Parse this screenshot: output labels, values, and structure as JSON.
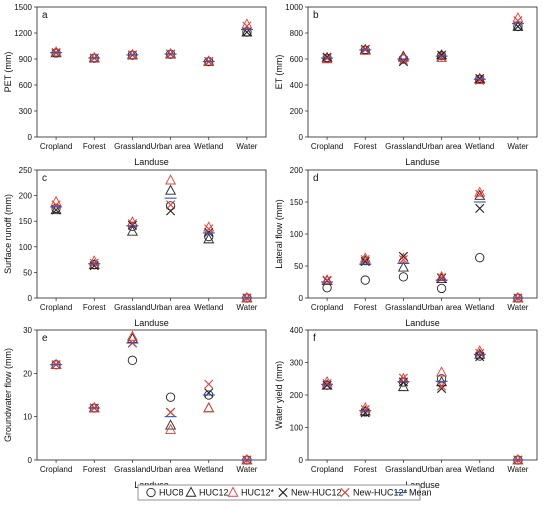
{
  "chart_data": [
    {
      "type": "scatter",
      "panel_label": "a",
      "xlabel": "Landuse",
      "ylabel": "PET (mm)",
      "categories": [
        "Cropland",
        "Forest",
        "Grassland",
        "Urban area",
        "Wetland",
        "Water"
      ],
      "ylim": [
        0,
        1500
      ],
      "yticks": [
        0,
        300,
        600,
        900,
        1200,
        1500
      ],
      "series": [
        {
          "name": "HUC8",
          "values": [
            970,
            910,
            945,
            955,
            870,
            1210
          ]
        },
        {
          "name": "HUC12",
          "values": [
            970,
            910,
            945,
            955,
            870,
            1210
          ]
        },
        {
          "name": "HUC12*",
          "values": [
            980,
            915,
            950,
            960,
            875,
            1300
          ]
        },
        {
          "name": "New-HUC12",
          "values": [
            970,
            910,
            945,
            955,
            870,
            1210
          ]
        },
        {
          "name": "New-HUC12*",
          "values": [
            975,
            912,
            948,
            958,
            872,
            1280
          ]
        },
        {
          "name": "Mean",
          "values": [
            973,
            911,
            947,
            957,
            871,
            1240
          ]
        }
      ]
    },
    {
      "type": "scatter",
      "panel_label": "b",
      "xlabel": "Landuse",
      "ylabel": "ET (mm)",
      "categories": [
        "Cropland",
        "Forest",
        "Grassland",
        "Urban area",
        "Wetland",
        "Water"
      ],
      "ylim": [
        0,
        1000
      ],
      "yticks": [
        0,
        200,
        400,
        600,
        800,
        1000
      ],
      "series": [
        {
          "name": "HUC8",
          "values": [
            605,
            668,
            600,
            625,
            445,
            850
          ]
        },
        {
          "name": "HUC12",
          "values": [
            610,
            672,
            620,
            630,
            448,
            850
          ]
        },
        {
          "name": "HUC12*",
          "values": [
            600,
            665,
            610,
            610,
            440,
            915
          ]
        },
        {
          "name": "New-HUC12",
          "values": [
            615,
            675,
            580,
            630,
            450,
            850
          ]
        },
        {
          "name": "New-HUC12*",
          "values": [
            605,
            670,
            590,
            615,
            435,
            895
          ]
        },
        {
          "name": "Mean",
          "values": [
            607,
            670,
            600,
            622,
            444,
            872
          ]
        }
      ]
    },
    {
      "type": "scatter",
      "panel_label": "c",
      "xlabel": "Landuse",
      "ylabel": "Surface runoff (mm)",
      "categories": [
        "Cropland",
        "Forest",
        "Grassland",
        "Urban area",
        "Wetland",
        "Water"
      ],
      "ylim": [
        0,
        250
      ],
      "yticks": [
        0,
        50,
        100,
        150,
        200,
        250
      ],
      "series": [
        {
          "name": "HUC8",
          "values": [
            175,
            65,
            140,
            180,
            120,
            0
          ]
        },
        {
          "name": "HUC12",
          "values": [
            172,
            65,
            130,
            210,
            115,
            0
          ]
        },
        {
          "name": "HUC12*",
          "values": [
            188,
            72,
            148,
            230,
            138,
            0
          ]
        },
        {
          "name": "New-HUC12",
          "values": [
            172,
            63,
            142,
            170,
            128,
            0
          ]
        },
        {
          "name": "New-HUC12*",
          "values": [
            182,
            68,
            145,
            182,
            135,
            0
          ]
        },
        {
          "name": "Mean",
          "values": [
            178,
            67,
            141,
            195,
            127,
            0
          ]
        }
      ]
    },
    {
      "type": "scatter",
      "panel_label": "d",
      "xlabel": "Landuse",
      "ylabel": "Lateral flow (mm)",
      "categories": [
        "Cropland",
        "Forest",
        "Grassland",
        "Urban area",
        "Wetland",
        "Water"
      ],
      "ylim": [
        0,
        200
      ],
      "yticks": [
        0,
        50,
        100,
        150,
        200
      ],
      "series": [
        {
          "name": "HUC8",
          "values": [
            16,
            28,
            33,
            15,
            63,
            0
          ]
        },
        {
          "name": "HUC12",
          "values": [
            27,
            58,
            48,
            30,
            160,
            0
          ]
        },
        {
          "name": "HUC12*",
          "values": [
            28,
            62,
            62,
            33,
            165,
            0
          ]
        },
        {
          "name": "New-HUC12",
          "values": [
            27,
            57,
            65,
            31,
            140,
            0
          ]
        },
        {
          "name": "New-HUC12*",
          "values": [
            28,
            60,
            60,
            32,
            162,
            0
          ]
        },
        {
          "name": "Mean",
          "values": [
            25,
            53,
            54,
            28,
            150,
            0
          ]
        }
      ]
    },
    {
      "type": "scatter",
      "panel_label": "e",
      "xlabel": "Landuse",
      "ylabel": "Groundwater flow (mm)",
      "categories": [
        "Cropland",
        "Forest",
        "Grassland",
        "Urban area",
        "Wetland",
        "Water"
      ],
      "ylim": [
        0,
        30
      ],
      "yticks": [
        0,
        10,
        20,
        30
      ],
      "series": [
        {
          "name": "HUC8",
          "values": [
            22,
            12,
            23,
            14.5,
            15,
            0
          ]
        },
        {
          "name": "HUC12",
          "values": [
            22,
            12,
            28,
            8,
            12,
            0
          ]
        },
        {
          "name": "HUC12*",
          "values": [
            22,
            12,
            28.5,
            7,
            12,
            0
          ]
        },
        {
          "name": "New-HUC12",
          "values": [
            22,
            12,
            27,
            11,
            15.5,
            0
          ]
        },
        {
          "name": "New-HUC12*",
          "values": [
            22,
            12,
            27,
            11,
            17.5,
            0
          ]
        },
        {
          "name": "Mean",
          "values": [
            22,
            12,
            27,
            10,
            15,
            0
          ]
        }
      ]
    },
    {
      "type": "scatter",
      "panel_label": "f",
      "xlabel": "Landuse",
      "ylabel": "Water yield (mm)",
      "categories": [
        "Cropland",
        "Forest",
        "Grassland",
        "Urban area",
        "Wetland",
        "Water"
      ],
      "ylim": [
        0,
        400
      ],
      "yticks": [
        0,
        100,
        200,
        300,
        400
      ],
      "series": [
        {
          "name": "HUC8",
          "values": [
            230,
            148,
            240,
            250,
            320,
            0
          ]
        },
        {
          "name": "HUC12",
          "values": [
            230,
            150,
            225,
            240,
            325,
            0
          ]
        },
        {
          "name": "HUC12*",
          "values": [
            240,
            160,
            250,
            270,
            335,
            0
          ]
        },
        {
          "name": "New-HUC12",
          "values": [
            230,
            145,
            240,
            220,
            318,
            0
          ]
        },
        {
          "name": "New-HUC12*",
          "values": [
            235,
            155,
            252,
            228,
            328,
            0
          ]
        },
        {
          "name": "Mean",
          "values": [
            233,
            152,
            241,
            242,
            325,
            0
          ]
        }
      ]
    }
  ],
  "legend": {
    "position": "bottom",
    "items": [
      {
        "label": "HUC8",
        "marker": "circle",
        "color": "#222222"
      },
      {
        "label": "HUC12",
        "marker": "triangle",
        "color": "#222222"
      },
      {
        "label": "HUC12*",
        "marker": "triangle",
        "color": "#e0403a"
      },
      {
        "label": "New-HUC12",
        "marker": "cross",
        "color": "#222222"
      },
      {
        "label": "New-HUC12*",
        "marker": "cross",
        "color": "#e0403a"
      },
      {
        "label": "Mean",
        "marker": "dash",
        "color": "#2b54c6"
      }
    ]
  }
}
